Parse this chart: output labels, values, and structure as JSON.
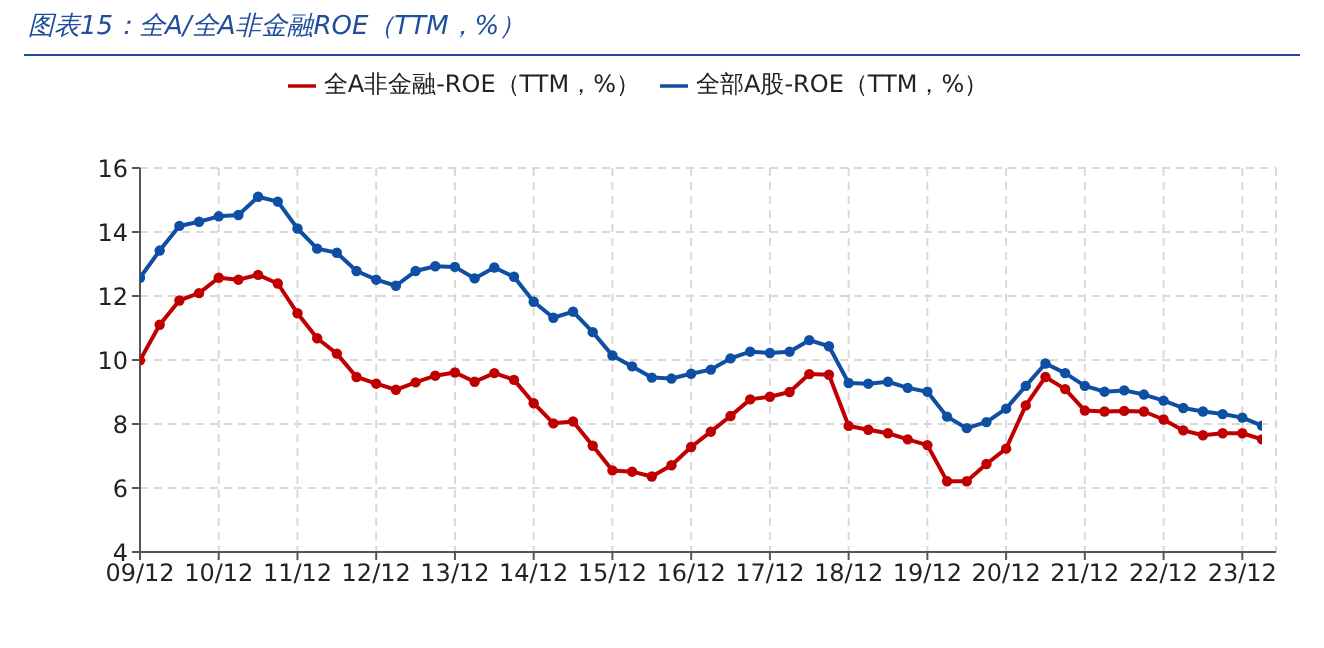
{
  "chart_data": {
    "type": "line",
    "title": "图表15：全A/全A非金融ROE（TTM，%）",
    "categories": [
      "09/12",
      null,
      null,
      null,
      "10/12",
      null,
      null,
      null,
      "11/12",
      null,
      null,
      null,
      "12/12",
      null,
      null,
      null,
      "13/12",
      null,
      null,
      null,
      "14/12",
      null,
      null,
      null,
      "15/12",
      null,
      null,
      null,
      "16/12",
      null,
      null,
      null,
      "17/12",
      null,
      null,
      null,
      "18/12",
      null,
      null,
      null,
      "19/12",
      null,
      null,
      null,
      "20/12",
      null,
      null,
      null,
      "21/12",
      null,
      null,
      null,
      "22/12",
      null,
      null,
      null,
      "23/12",
      null
    ],
    "series": [
      {
        "name": "全部A股-ROE（TTM，%）",
        "color": "#0e4ea3",
        "values": [
          12.57,
          13.42,
          14.19,
          14.32,
          14.49,
          14.53,
          15.1,
          14.95,
          14.11,
          13.48,
          13.35,
          12.78,
          12.51,
          12.32,
          12.78,
          12.93,
          12.91,
          12.55,
          12.89,
          12.6,
          11.82,
          11.32,
          11.51,
          10.87,
          10.14,
          9.8,
          9.45,
          9.42,
          9.57,
          9.7,
          10.05,
          10.26,
          10.22,
          10.26,
          10.62,
          10.43,
          9.28,
          9.26,
          9.32,
          9.13,
          9.01,
          8.23,
          7.87,
          8.06,
          8.48,
          9.19,
          9.89,
          9.59,
          9.19,
          9.01,
          9.05,
          8.92,
          8.73,
          8.5,
          8.39,
          8.31,
          8.2,
          7.95
        ]
      },
      {
        "name": "全A非金融-ROE（TTM，%）",
        "color": "#c00000",
        "values": [
          9.99,
          11.1,
          11.86,
          12.09,
          12.57,
          12.51,
          12.66,
          12.39,
          11.46,
          10.68,
          10.2,
          9.47,
          9.26,
          9.07,
          9.3,
          9.51,
          9.61,
          9.32,
          9.59,
          9.38,
          8.65,
          8.02,
          8.08,
          7.32,
          6.55,
          6.51,
          6.36,
          6.71,
          7.28,
          7.76,
          8.25,
          8.77,
          8.85,
          9.0,
          9.56,
          9.54,
          7.94,
          7.82,
          7.71,
          7.52,
          7.34,
          6.21,
          6.21,
          6.75,
          7.23,
          8.58,
          9.47,
          9.09,
          8.42,
          8.39,
          8.41,
          8.39,
          8.14,
          7.8,
          7.65,
          7.71,
          7.71,
          7.52
        ]
      }
    ],
    "ylim": [
      4,
      16
    ],
    "yticks": [
      4,
      6,
      8,
      10,
      12,
      14,
      16
    ],
    "grid": true,
    "legend": "top",
    "marker": "circle",
    "line_style": "solid"
  }
}
